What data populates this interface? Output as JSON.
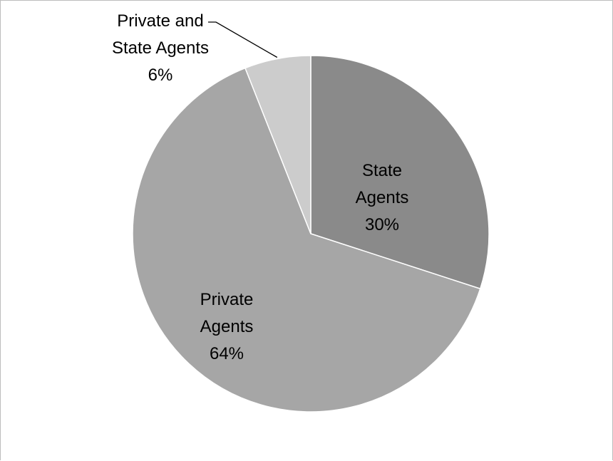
{
  "chart_data": {
    "type": "pie",
    "title": "",
    "slices": [
      {
        "label_lines": [
          "State",
          "Agents"
        ],
        "value_label": "30%",
        "value": 30,
        "color": "#8a8a8a"
      },
      {
        "label_lines": [
          "Private",
          "Agents"
        ],
        "value_label": "64%",
        "value": 64,
        "color": "#a6a6a6"
      },
      {
        "label_lines": [
          "Private and",
          "State Agents"
        ],
        "value_label": "6%",
        "value": 6,
        "color": "#cccccc"
      }
    ],
    "legend": "none",
    "start_angle": "12 o'clock",
    "direction": "clockwise"
  }
}
